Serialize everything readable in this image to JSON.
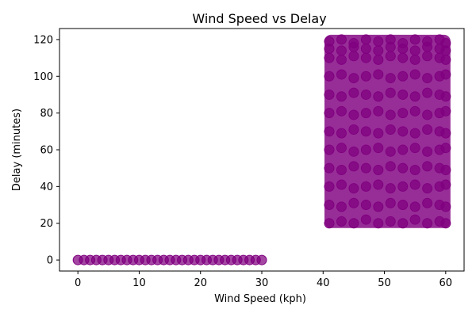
{
  "chart_data": {
    "type": "scatter",
    "title": "Wind Speed vs Delay",
    "xlabel": "Wind Speed (kph)",
    "ylabel": "Delay (minutes)",
    "xlim": [
      -3,
      63
    ],
    "ylim": [
      -6,
      126
    ],
    "xticks": [
      0,
      10,
      20,
      30,
      40,
      50,
      60
    ],
    "yticks": [
      0,
      20,
      40,
      60,
      80,
      100,
      120
    ],
    "grid": false,
    "legend": "none",
    "marker_color": "#800080",
    "series": [
      {
        "x": [
          0,
          1,
          2,
          3,
          4,
          5,
          6,
          7,
          8,
          9,
          10,
          11,
          12,
          13,
          14,
          15,
          16,
          17,
          18,
          19,
          20,
          21,
          22,
          23,
          24,
          25,
          26,
          27,
          28,
          29,
          30,
          41,
          43,
          45,
          47,
          49,
          51,
          53,
          55,
          57,
          59,
          60,
          41,
          43,
          45,
          47,
          49,
          51,
          53,
          55,
          57,
          59,
          60,
          41,
          43,
          45,
          47,
          49,
          51,
          53,
          55,
          57,
          59,
          60,
          41,
          43,
          45,
          47,
          49,
          51,
          53,
          55,
          57,
          59,
          60,
          41,
          43,
          45,
          47,
          49,
          51,
          53,
          55,
          57,
          59,
          60,
          41,
          43,
          45,
          47,
          49,
          51,
          53,
          55,
          57,
          59,
          60,
          41,
          43,
          45,
          47,
          49,
          51,
          53,
          55,
          57,
          59,
          60,
          41,
          43,
          45,
          47,
          49,
          51,
          53,
          55,
          57,
          59,
          60,
          41,
          43,
          45,
          47,
          49,
          51,
          53,
          55,
          57,
          59,
          60,
          41,
          43,
          45,
          47,
          49,
          51,
          53,
          55,
          57,
          59,
          60,
          41,
          43,
          45,
          47,
          49,
          51,
          53,
          55,
          57,
          59,
          60,
          41,
          43,
          45,
          47,
          49,
          51,
          53,
          55,
          57,
          59,
          60
        ],
        "y": [
          0,
          0,
          0,
          0,
          0,
          0,
          0,
          0,
          0,
          0,
          0,
          0,
          0,
          0,
          0,
          0,
          0,
          0,
          0,
          0,
          0,
          0,
          0,
          0,
          0,
          0,
          0,
          0,
          0,
          0,
          0,
          20,
          21,
          20,
          22,
          20,
          21,
          20,
          22,
          20,
          21,
          20,
          30,
          29,
          31,
          30,
          29,
          31,
          30,
          29,
          31,
          30,
          29,
          40,
          41,
          39,
          40,
          41,
          39,
          40,
          41,
          39,
          40,
          41,
          50,
          49,
          51,
          50,
          49,
          51,
          50,
          49,
          51,
          50,
          49,
          60,
          61,
          59,
          60,
          61,
          59,
          60,
          61,
          59,
          60,
          61,
          70,
          69,
          71,
          70,
          69,
          71,
          70,
          69,
          71,
          70,
          69,
          80,
          81,
          79,
          80,
          81,
          79,
          80,
          81,
          79,
          80,
          81,
          90,
          89,
          91,
          90,
          89,
          91,
          90,
          89,
          91,
          90,
          89,
          100,
          101,
          99,
          100,
          101,
          99,
          100,
          101,
          99,
          100,
          101,
          110,
          109,
          111,
          110,
          109,
          111,
          110,
          109,
          111,
          110,
          109,
          119,
          120,
          118,
          120,
          119,
          120,
          118,
          120,
          119,
          120,
          118,
          115,
          114,
          116,
          115,
          114,
          116,
          115,
          114,
          116,
          115,
          114
        ]
      }
    ],
    "filled_region": {
      "x": [
        41,
        60
      ],
      "y": [
        20,
        120
      ]
    }
  }
}
